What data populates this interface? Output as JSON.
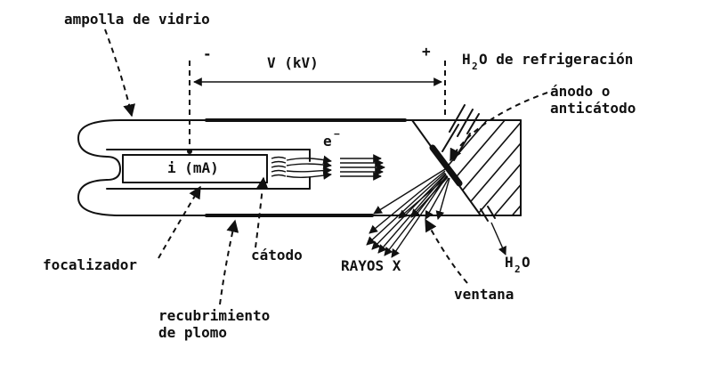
{
  "labels": {
    "ampolla": "ampolla de vidrio",
    "minus": "-",
    "voltage": "V (kV)",
    "plus": "+",
    "water_in_h": "H",
    "water_in_sub": "2",
    "water_in_rest": "O de refrigeración",
    "anodo_1": "ánodo o",
    "anodo_2": "anticátodo",
    "electron": "e",
    "electron_sup": "−",
    "current": "i (mA)",
    "focalizador": "focalizador",
    "catodo": "cátodo",
    "rayos": "RAYOS X",
    "water_out_h": "H",
    "water_out_sub": "2",
    "water_out_rest": "O",
    "ventana": "ventana",
    "plomo_1": "recubrimiento",
    "plomo_2": "de plomo"
  },
  "colors": {
    "ink": "#111111",
    "background": "#ffffff"
  }
}
